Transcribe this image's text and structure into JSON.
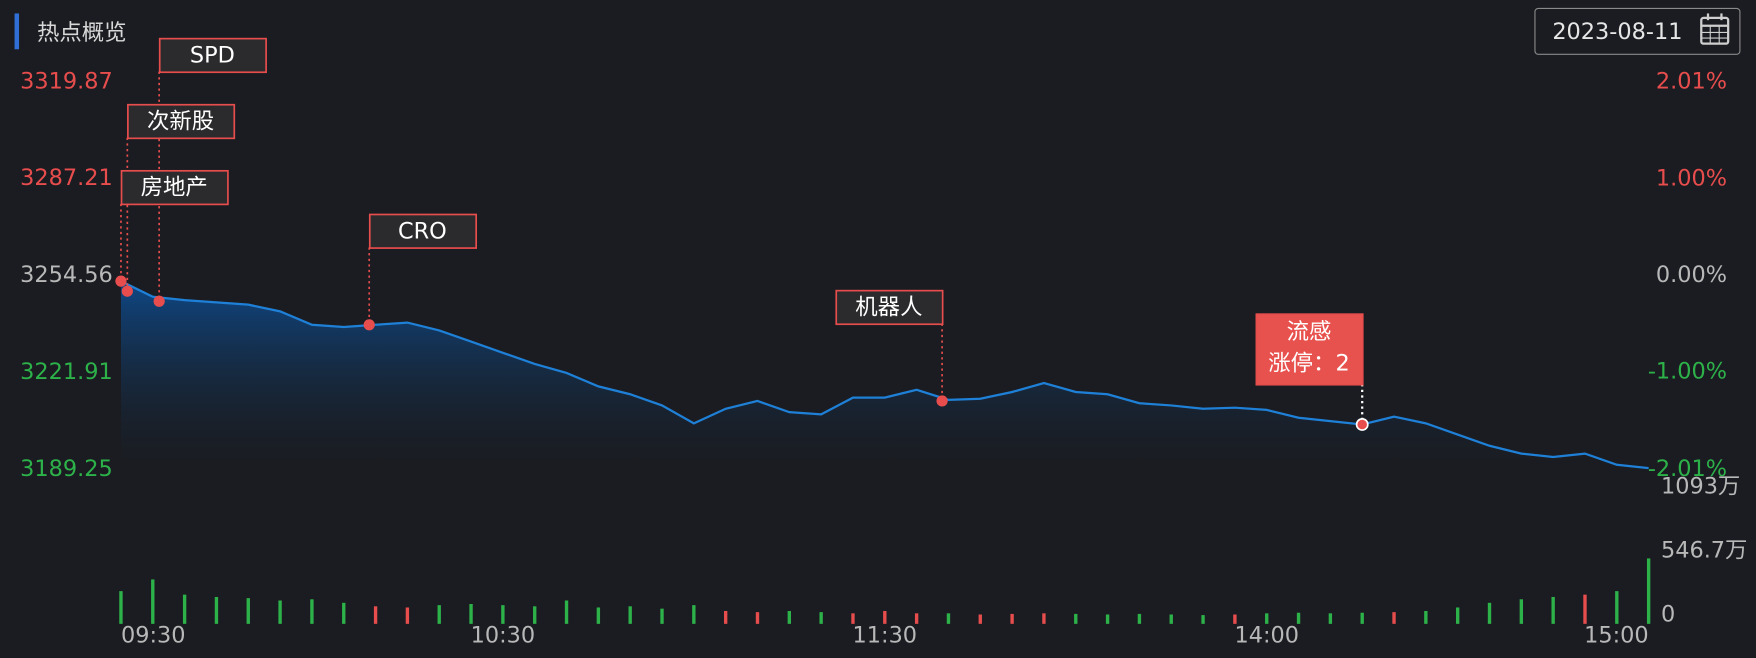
{
  "header": {
    "title": "热点概览",
    "date": "2023-08-11"
  },
  "chart_data": {
    "type": "line",
    "x": [
      0,
      5,
      10,
      15,
      20,
      25,
      30,
      35,
      40,
      45,
      50,
      55,
      60,
      65,
      70,
      75,
      80,
      85,
      90,
      95,
      100,
      105,
      110,
      115,
      120,
      125,
      130,
      135,
      140,
      145,
      150,
      155,
      160,
      165,
      170,
      175,
      180,
      185,
      190,
      195,
      200,
      205,
      210,
      215,
      220,
      225,
      230,
      235,
      240
    ],
    "xlim": [
      0,
      240
    ],
    "xticks": [
      {
        "value": 0,
        "label": "09:30"
      },
      {
        "value": 60,
        "label": "10:30"
      },
      {
        "value": 120,
        "label": "11:30"
      },
      {
        "value": 180,
        "label": "14:00"
      },
      {
        "value": 240,
        "label": "15:00"
      }
    ],
    "ylim": [
      3189.25,
      3319.87
    ],
    "yticks": [
      3319.87,
      3287.21,
      3254.56,
      3221.91,
      3189.25
    ],
    "y2lim": [
      -2.01,
      2.01
    ],
    "y2ticks": [
      {
        "value": 2.01,
        "label": "2.01%"
      },
      {
        "value": 1.0,
        "label": "1.00%"
      },
      {
        "value": 0,
        "label": "0.00%"
      },
      {
        "value": -1.0,
        "label": "-1.00%"
      },
      {
        "value": -2.01,
        "label": "-2.01%"
      }
    ],
    "vlim": [
      0,
      1093
    ],
    "vticks": [
      {
        "value": 1093,
        "label": "1093万"
      },
      {
        "value": 546.7,
        "label": "546.7万"
      },
      0
    ],
    "grid": false,
    "series": [
      {
        "color": "#1f80d8",
        "values": [
          3252.67,
          3247.39,
          3246.25,
          3245.5,
          3244.74,
          3242.48,
          3237.95,
          3237.19,
          3237.95,
          3238.7,
          3236.06,
          3232.29,
          3228.51,
          3224.74,
          3221.72,
          3217.19,
          3214.54,
          3210.77,
          3204.73,
          3209.64,
          3212.28,
          3208.5,
          3207.75,
          3213.41,
          3213.41,
          3216.05,
          3212.66,
          3213.03,
          3215.3,
          3218.32,
          3215.3,
          3214.54,
          3211.52,
          3210.77,
          3209.64,
          3210.01,
          3209.26,
          3206.62,
          3205.48,
          3204.35,
          3206.99,
          3204.73,
          3200.95,
          3197.18,
          3194.54,
          3193.4,
          3194.54,
          3190.76,
          3189.63
        ]
      },
      {
        "type": "bar",
        "axis": "volume",
        "up_color": "#e84d4d",
        "down_color": "#2db24a",
        "values": [
          280,
          380,
          250,
          230,
          220,
          200,
          210,
          180,
          150,
          140,
          160,
          170,
          160,
          150,
          200,
          140,
          150,
          130,
          160,
          110,
          100,
          110,
          100,
          90,
          110,
          90,
          90,
          80,
          85,
          90,
          85,
          80,
          85,
          80,
          75,
          80,
          90,
          95,
          90,
          95,
          100,
          110,
          140,
          180,
          210,
          230,
          250,
          280,
          560
        ]
      }
    ],
    "annotations": [
      {
        "label": "SPD",
        "x": 6,
        "y": 3245.88
      },
      {
        "label": "次新股",
        "x": 1,
        "y": 3249.27
      },
      {
        "label": "房地产",
        "x": 0,
        "y": 3252.67
      },
      {
        "label": "CRO",
        "x": 39,
        "y": 3237.95
      },
      {
        "label": "机器人",
        "x": 129,
        "y": 3212.28
      },
      {
        "label": "流感",
        "detail": "涨停：2",
        "x": 195,
        "y": 3204.35,
        "highlight": true
      }
    ]
  }
}
